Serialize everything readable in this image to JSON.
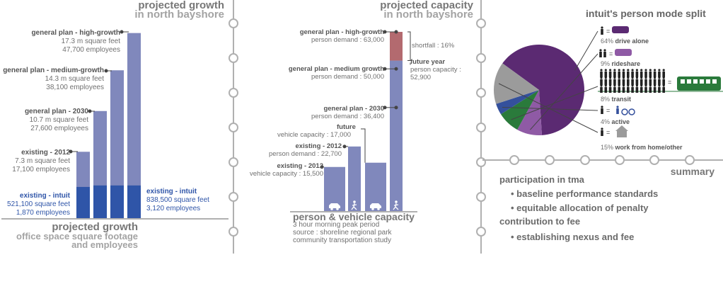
{
  "growth": {
    "title_1": "projected growth",
    "title_2": "in north bayshore",
    "bottom_title_1": "projected growth",
    "bottom_title_2": "office space square footage",
    "bottom_title_3": "and employees",
    "bar_color": "#8088bc",
    "intuit_color": "#2f55a8"
  },
  "capacity": {
    "title_1": "projected capacity",
    "title_2": "in north bayshore",
    "bottom_title": "person & vehicle capacity",
    "bottom_sub_1": "3 hour morning peak period",
    "bottom_sub_2": "source : shoreline regional park",
    "bottom_sub_3": "community transportation study",
    "bar_color": "#8088bc",
    "shortfall_color": "#b36a6f",
    "car_icon": "car-icon",
    "walker_icon": "walker-icon"
  },
  "mode": {
    "title": "intuit's person mode split",
    "person_icon": "person-icon",
    "equals": "="
  },
  "summary": {
    "title": "summary",
    "heading_1": "participation in tma",
    "bullet_1": "• baseline performance standards",
    "bullet_2": "• equitable allocation of penalty",
    "heading_2": "contribution to fee",
    "bullet_3": "• establishing nexus and fee"
  },
  "chart_data": [
    {
      "type": "bar",
      "title": "projected growth in north bayshore",
      "unit": "employees",
      "categories": [
        "existing - 2012",
        "general plan - 2030",
        "general plan - medium-growth",
        "general plan - high-growth"
      ],
      "series": [
        {
          "name": "",
          "values": [
            17100,
            27600,
            38100,
            47700
          ]
        }
      ],
      "square_feet": [
        "7.3 m square feet",
        "10.7 m square feet",
        "14.3 m square feet",
        "17.3 m square feet"
      ],
      "employees_text": [
        "17,100 employees",
        "27,600 employees",
        "38,100 employees",
        "47,700 employees"
      ],
      "intuit": {
        "existing_label": "existing - intuit",
        "existing_sqft": "521,100 square feet",
        "existing_emp": "1,870 employees",
        "existing_employees": 1870,
        "future_label": "existing - intuit",
        "future_sqft": "838,500 square feet",
        "future_emp": "3,120 employees",
        "future_employees": 3120
      },
      "ylim": [
        0,
        48000
      ]
    },
    {
      "type": "bar",
      "title": "projected capacity in north bayshore",
      "categories": [
        "existing - 2012",
        "existing - 2012",
        "future",
        "general plan - 2030"
      ],
      "bars": [
        {
          "label": "existing - 2012",
          "sub": "vehicle capacity : 15,500",
          "value": 15500,
          "icon": "car-icon"
        },
        {
          "label": "existing - 2012",
          "sub": "person demand : 22,700",
          "value": 22700,
          "icon": "walker-icon"
        },
        {
          "label": "future",
          "sub": "vehicle capacity : 17,000",
          "value": 17000,
          "icon": "car-icon"
        },
        {
          "label": "future year",
          "sub": "person capacity :",
          "sub2": "52,900",
          "value": 52900,
          "icon": "walker-icon"
        }
      ],
      "demand_markers": [
        {
          "label": "general plan - 2030",
          "sub": "person demand : 36,400",
          "value": 36400
        },
        {
          "label": "general plan - medium growth",
          "sub": "person demand : 50,000",
          "value": 50000
        },
        {
          "label": "general plan - high-growth",
          "sub": "person demand : 63,000",
          "value": 63000
        }
      ],
      "shortfall": {
        "label": "shortfall : 16%",
        "from": 52900,
        "to": 63000
      },
      "ylim": [
        0,
        63000
      ]
    },
    {
      "type": "pie",
      "title": "intuit's person mode split",
      "slices": [
        {
          "label": "drive alone",
          "pct_text": "64%",
          "value": 64,
          "color": "#5b2a72",
          "icon": "car-icon"
        },
        {
          "label": "rideshare",
          "pct_text": "9%",
          "value": 9,
          "color": "#8f5aa5",
          "icon": "car-icon"
        },
        {
          "label": "transit",
          "pct_text": "8%",
          "value": 8,
          "color": "#2a7a3b",
          "icon": "bus-icon"
        },
        {
          "label": "active",
          "pct_text": "4%",
          "value": 4,
          "color": "#34509c",
          "icon": "bike-icon"
        },
        {
          "label": "work from home/other",
          "pct_text": "15%",
          "value": 15,
          "color": "#9b9b9b",
          "icon": "house-icon"
        }
      ]
    }
  ]
}
